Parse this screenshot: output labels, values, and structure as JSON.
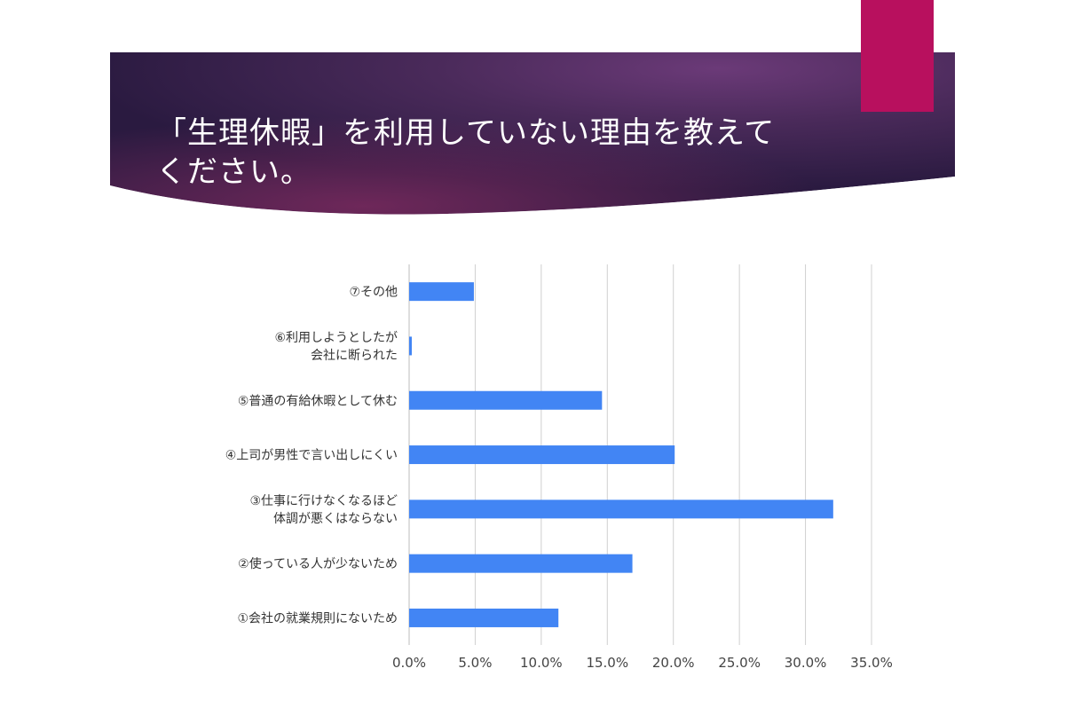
{
  "slide": {
    "title": "「生理休暇」を利用していない理由を教えてください。",
    "colors": {
      "banner_dark": "#2a1a40",
      "banner_mid": "#5a2558",
      "banner_glow": "#6b3a78",
      "accent": "#b8105e",
      "bar": "#4285f4",
      "grid": "#d0d0d0"
    }
  },
  "chart_data": {
    "type": "bar",
    "orientation": "horizontal",
    "title": "",
    "xlabel": "",
    "ylabel": "",
    "xlim": [
      0,
      35
    ],
    "ticks": [
      0,
      5,
      10,
      15,
      20,
      25,
      30,
      35
    ],
    "tick_labels": [
      "0.0%",
      "5.0%",
      "10.0%",
      "15.0%",
      "20.0%",
      "25.0%",
      "30.0%",
      "35.0%"
    ],
    "grid": "vertical",
    "legend": "none",
    "categories": [
      [
        "⑦その他"
      ],
      [
        "⑥利用しようとしたが",
        "会社に断られた"
      ],
      [
        "⑤普通の有給休暇として休む"
      ],
      [
        "④上司が男性で言い出しにくい"
      ],
      [
        "③仕事に行けなくなるほど",
        "体調が悪くはならない"
      ],
      [
        "②使っている人が少ないため"
      ],
      [
        "①会社の就業規則にないため"
      ]
    ],
    "values": [
      4.9,
      0.2,
      14.6,
      20.1,
      32.1,
      16.9,
      11.3
    ]
  }
}
